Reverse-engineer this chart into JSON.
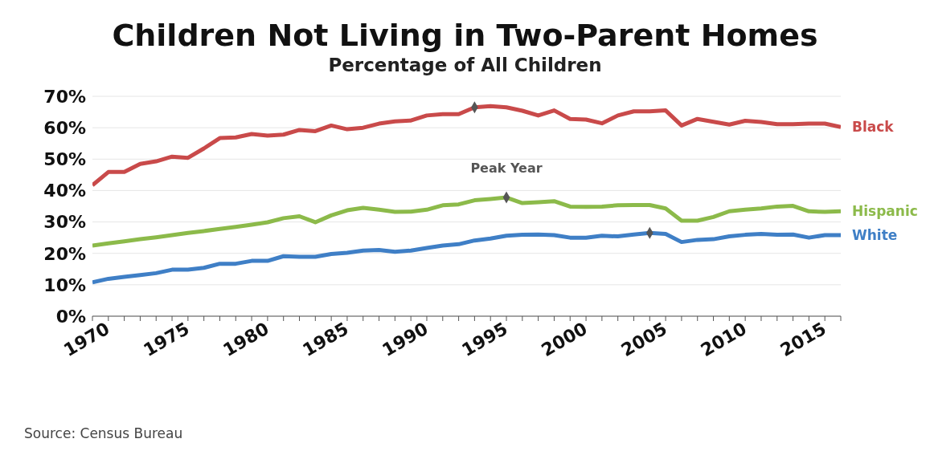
{
  "chart_data": {
    "type": "line",
    "title": "Children Not Living in Two-Parent Homes",
    "subtitle": "Percentage of All Children",
    "x": [
      1970,
      1971,
      1972,
      1973,
      1974,
      1975,
      1976,
      1977,
      1978,
      1979,
      1980,
      1981,
      1982,
      1983,
      1984,
      1985,
      1986,
      1987,
      1988,
      1989,
      1990,
      1991,
      1992,
      1993,
      1994,
      1995,
      1996,
      1997,
      1998,
      1999,
      2000,
      2001,
      2002,
      2003,
      2004,
      2005,
      2006,
      2007,
      2008,
      2009,
      2010,
      2011,
      2012,
      2013,
      2014,
      2015,
      2016,
      2017
    ],
    "series": [
      {
        "name": "Black",
        "color": "#c94a4a",
        "values": [
          41.7,
          45.9,
          45.9,
          48.5,
          49.3,
          50.8,
          50.4,
          53.4,
          56.7,
          56.9,
          58.0,
          57.5,
          57.8,
          59.3,
          58.9,
          60.7,
          59.5,
          60.0,
          61.3,
          62.0,
          62.3,
          63.9,
          64.3,
          64.3,
          66.5,
          66.9,
          66.5,
          65.4,
          63.9,
          65.5,
          62.8,
          62.6,
          61.4,
          63.9,
          65.2,
          65.2,
          65.5,
          60.7,
          62.8,
          61.9,
          61.0,
          62.2,
          61.8,
          61.1,
          61.1,
          61.3,
          61.3,
          60.2
        ]
      },
      {
        "name": "Hispanic",
        "color": "#8cba4a",
        "values": [
          22.5,
          23.2,
          23.8,
          24.5,
          25.1,
          25.8,
          26.5,
          27.1,
          27.8,
          28.4,
          29.1,
          29.9,
          31.2,
          31.8,
          29.9,
          32.1,
          33.7,
          34.5,
          33.9,
          33.2,
          33.3,
          33.9,
          35.3,
          35.6,
          36.9,
          37.3,
          37.8,
          36.0,
          36.3,
          36.6,
          34.9,
          34.8,
          34.9,
          35.3,
          35.4,
          35.4,
          34.3,
          30.4,
          30.4,
          31.6,
          33.4,
          33.9,
          34.3,
          34.9,
          35.1,
          33.4,
          33.2,
          33.4
        ]
      },
      {
        "name": "White",
        "color": "#3f7fc6",
        "values": [
          10.8,
          11.9,
          12.5,
          13.1,
          13.7,
          14.8,
          14.8,
          15.4,
          16.7,
          16.7,
          17.6,
          17.6,
          19.1,
          18.9,
          18.9,
          19.8,
          20.2,
          20.9,
          21.1,
          20.5,
          20.9,
          21.7,
          22.5,
          22.9,
          24.1,
          24.7,
          25.6,
          25.9,
          26.0,
          25.8,
          25.0,
          25.0,
          25.6,
          25.4,
          26.0,
          26.5,
          26.2,
          23.6,
          24.3,
          24.5,
          25.4,
          25.9,
          26.2,
          25.9,
          26.0,
          25.0,
          25.8,
          25.8
        ]
      },
      {
        "type": "scatter",
        "color": "#555555",
        "marker": "diamond",
        "x": [
          1994,
          1996,
          2005
        ],
        "values": [
          66.5,
          37.8,
          26.5
        ]
      }
    ],
    "xlim": [
      1970,
      2017
    ],
    "xticks": [
      1970,
      {
        "value": 1971,
        "label": null
      },
      {
        "value": 1972,
        "label": null
      },
      {
        "value": 1973,
        "label": null
      },
      {
        "value": 1974,
        "label": null
      },
      1975,
      {
        "value": 1976,
        "label": null
      },
      {
        "value": 1977,
        "label": null
      },
      {
        "value": 1978,
        "label": null
      },
      {
        "value": 1979,
        "label": null
      },
      1980,
      {
        "value": 1981,
        "label": null
      },
      {
        "value": 1982,
        "label": null
      },
      {
        "value": 1983,
        "label": null
      },
      {
        "value": 1984,
        "label": null
      },
      1985,
      {
        "value": 1986,
        "label": null
      },
      {
        "value": 1987,
        "label": null
      },
      {
        "value": 1988,
        "label": null
      },
      {
        "value": 1989,
        "label": null
      },
      1990,
      {
        "value": 1991,
        "label": null
      },
      {
        "value": 1992,
        "label": null
      },
      {
        "value": 1993,
        "label": null
      },
      {
        "value": 1994,
        "label": null
      },
      1995,
      {
        "value": 1996,
        "label": null
      },
      {
        "value": 1997,
        "label": null
      },
      {
        "value": 1998,
        "label": null
      },
      {
        "value": 1999,
        "label": null
      },
      2000,
      {
        "value": 2001,
        "label": null
      },
      {
        "value": 2002,
        "label": null
      },
      {
        "value": 2003,
        "label": null
      },
      {
        "value": 2004,
        "label": null
      },
      2005,
      {
        "value": 2006,
        "label": null
      },
      {
        "value": 2007,
        "label": null
      },
      {
        "value": 2008,
        "label": null
      },
      {
        "value": 2009,
        "label": null
      },
      2010,
      {
        "value": 2011,
        "label": null
      },
      {
        "value": 2012,
        "label": null
      },
      {
        "value": 2013,
        "label": null
      },
      {
        "value": 2014,
        "label": null
      },
      2015,
      {
        "value": 2016,
        "label": null
      },
      {
        "value": 2017,
        "label": null
      }
    ],
    "ylim": [
      0,
      70
    ],
    "yticks": [
      {
        "value": 0,
        "label": "0%"
      },
      {
        "value": 10,
        "label": "10%"
      },
      {
        "value": 20,
        "label": "20%"
      },
      {
        "value": 30,
        "label": "30%"
      },
      {
        "value": 40,
        "label": "40%"
      },
      {
        "value": 50,
        "label": "50%"
      },
      {
        "value": 60,
        "label": "60%"
      },
      {
        "value": 70,
        "label": "70%"
      }
    ],
    "grid": "y",
    "legend": false,
    "marker": "none",
    "line_style": "solid",
    "annotations": [
      {
        "text": "Peak Year",
        "x": 1996,
        "y": 37.8
      },
      "Source: Census Bureau"
    ]
  }
}
